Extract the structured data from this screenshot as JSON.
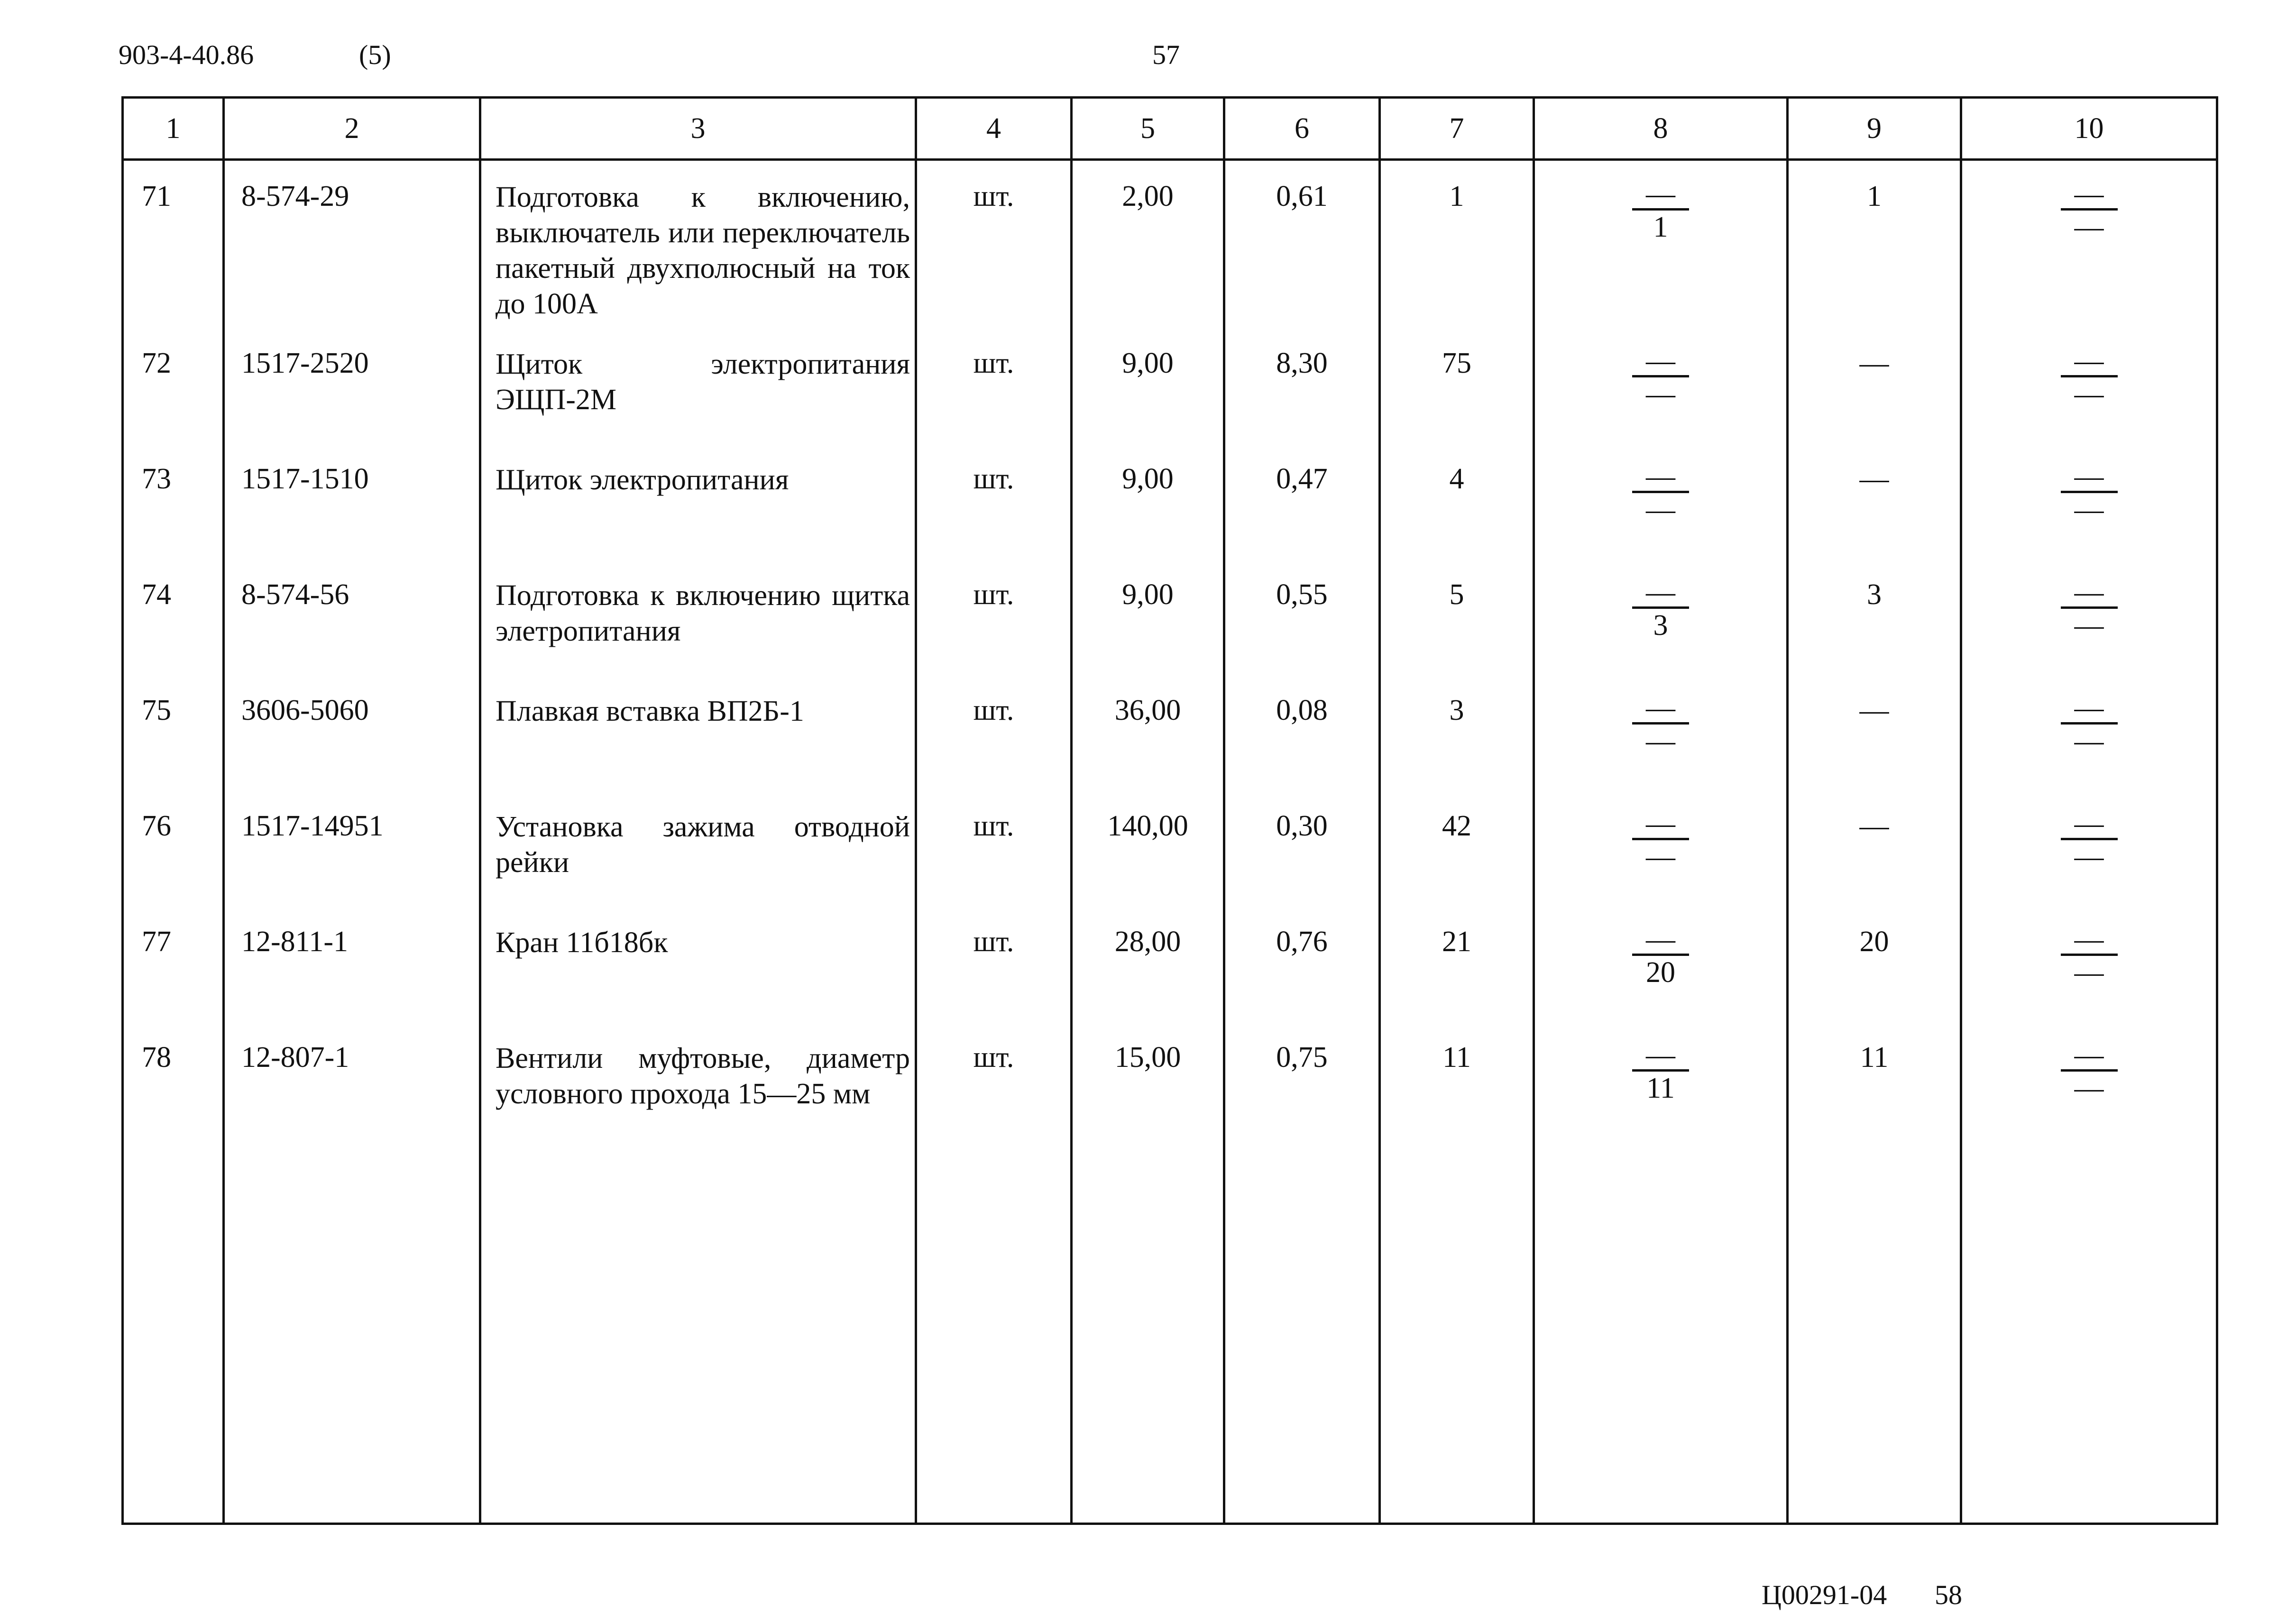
{
  "page_header": {
    "doc_code": "903-4-40.86",
    "part": "(5)",
    "page": "57"
  },
  "page_footer": {
    "code": "Ц00291-04",
    "page": "58"
  },
  "table": {
    "columns": [
      "1",
      "2",
      "3",
      "4",
      "5",
      "6",
      "7",
      "8",
      "9",
      "10"
    ],
    "rows": [
      {
        "no": "71",
        "code": "8-574-29",
        "name": "Подготовка к включению, выключатель или переключатель пакетный двухполюсный на ток до 100А",
        "unit": "шт.",
        "c5": "2,00",
        "c6": "0,61",
        "c7": "1",
        "c8_top": "—",
        "c8_bottom": "1",
        "c9": "1",
        "c10_top": "—",
        "c10_bottom": "—"
      },
      {
        "no": "72",
        "code": "1517-2520",
        "name": "Щиток электропитания ЭЩП-2М",
        "unit": "шт.",
        "c5": "9,00",
        "c6": "8,30",
        "c7": "75",
        "c8_top": "—",
        "c8_bottom": "—",
        "c9": "—",
        "c10_top": "—",
        "c10_bottom": "—"
      },
      {
        "no": "73",
        "code": "1517-1510",
        "name": "Щиток электропитания",
        "unit": "шт.",
        "c5": "9,00",
        "c6": "0,47",
        "c7": "4",
        "c8_top": "—",
        "c8_bottom": "—",
        "c9": "—",
        "c10_top": "—",
        "c10_bottom": "—"
      },
      {
        "no": "74",
        "code": "8-574-56",
        "name": "Подготовка к включению щитка элетропитания",
        "unit": "шт.",
        "c5": "9,00",
        "c6": "0,55",
        "c7": "5",
        "c8_top": "—",
        "c8_bottom": "3",
        "c9": "3",
        "c10_top": "—",
        "c10_bottom": "—"
      },
      {
        "no": "75",
        "code": "3606-5060",
        "name": "Плавкая вставка ВП2Б-1",
        "unit": "шт.",
        "c5": "36,00",
        "c6": "0,08",
        "c7": "3",
        "c8_top": "—",
        "c8_bottom": "—",
        "c9": "—",
        "c10_top": "—",
        "c10_bottom": "—"
      },
      {
        "no": "76",
        "code": "1517-14951",
        "name": "Установка зажима отводной рейки",
        "unit": "шт.",
        "c5": "140,00",
        "c6": "0,30",
        "c7": "42",
        "c8_top": "—",
        "c8_bottom": "—",
        "c9": "—",
        "c10_top": "—",
        "c10_bottom": "—"
      },
      {
        "no": "77",
        "code": "12-811-1",
        "name": "Кран 11б18бк",
        "unit": "шт.",
        "c5": "28,00",
        "c6": "0,76",
        "c7": "21",
        "c8_top": "—",
        "c8_bottom": "20",
        "c9": "20",
        "c10_top": "—",
        "c10_bottom": "—"
      },
      {
        "no": "78",
        "code": "12-807-1",
        "name": "Вентили муфтовые, диаметр условного прохода 15—25 мм",
        "unit": "шт.",
        "c5": "15,00",
        "c6": "0,75",
        "c7": "11",
        "c8_top": "—",
        "c8_bottom": "11",
        "c9": "11",
        "c10_top": "—",
        "c10_bottom": "—"
      }
    ]
  }
}
